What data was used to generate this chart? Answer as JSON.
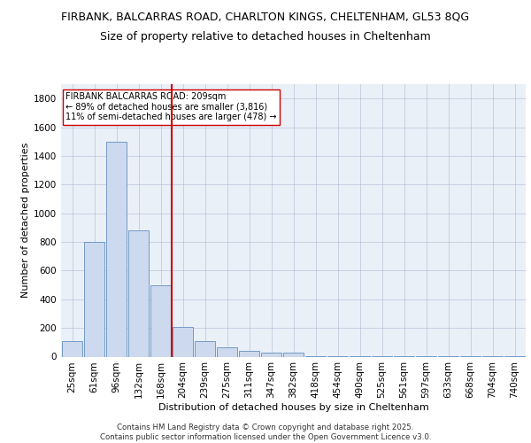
{
  "title1": "FIRBANK, BALCARRAS ROAD, CHARLTON KINGS, CHELTENHAM, GL53 8QG",
  "title2": "Size of property relative to detached houses in Cheltenham",
  "xlabel": "Distribution of detached houses by size in Cheltenham",
  "ylabel": "Number of detached properties",
  "categories": [
    "25sqm",
    "61sqm",
    "96sqm",
    "132sqm",
    "168sqm",
    "204sqm",
    "239sqm",
    "275sqm",
    "311sqm",
    "347sqm",
    "382sqm",
    "418sqm",
    "454sqm",
    "490sqm",
    "525sqm",
    "561sqm",
    "597sqm",
    "633sqm",
    "668sqm",
    "704sqm",
    "740sqm"
  ],
  "values": [
    110,
    800,
    1500,
    880,
    500,
    210,
    110,
    65,
    40,
    30,
    25,
    5,
    5,
    5,
    5,
    5,
    5,
    5,
    5,
    5,
    5
  ],
  "bar_color": "#cdd9ee",
  "bar_edge_color": "#6090c0",
  "vline_color": "#cc0000",
  "annotation_text": "FIRBANK BALCARRAS ROAD: 209sqm\n← 89% of detached houses are smaller (3,816)\n11% of semi-detached houses are larger (478) →",
  "annotation_box_color": "#ffffff",
  "annotation_box_edge_color": "#cc0000",
  "ylim": [
    0,
    1900
  ],
  "yticks": [
    0,
    200,
    400,
    600,
    800,
    1000,
    1200,
    1400,
    1600,
    1800
  ],
  "bg_color": "#eaf0f8",
  "footer": "Contains HM Land Registry data © Crown copyright and database right 2025.\nContains public sector information licensed under the Open Government Licence v3.0.",
  "title1_fontsize": 9,
  "title2_fontsize": 9,
  "axis_label_fontsize": 8,
  "tick_fontsize": 7.5,
  "annotation_fontsize": 7
}
